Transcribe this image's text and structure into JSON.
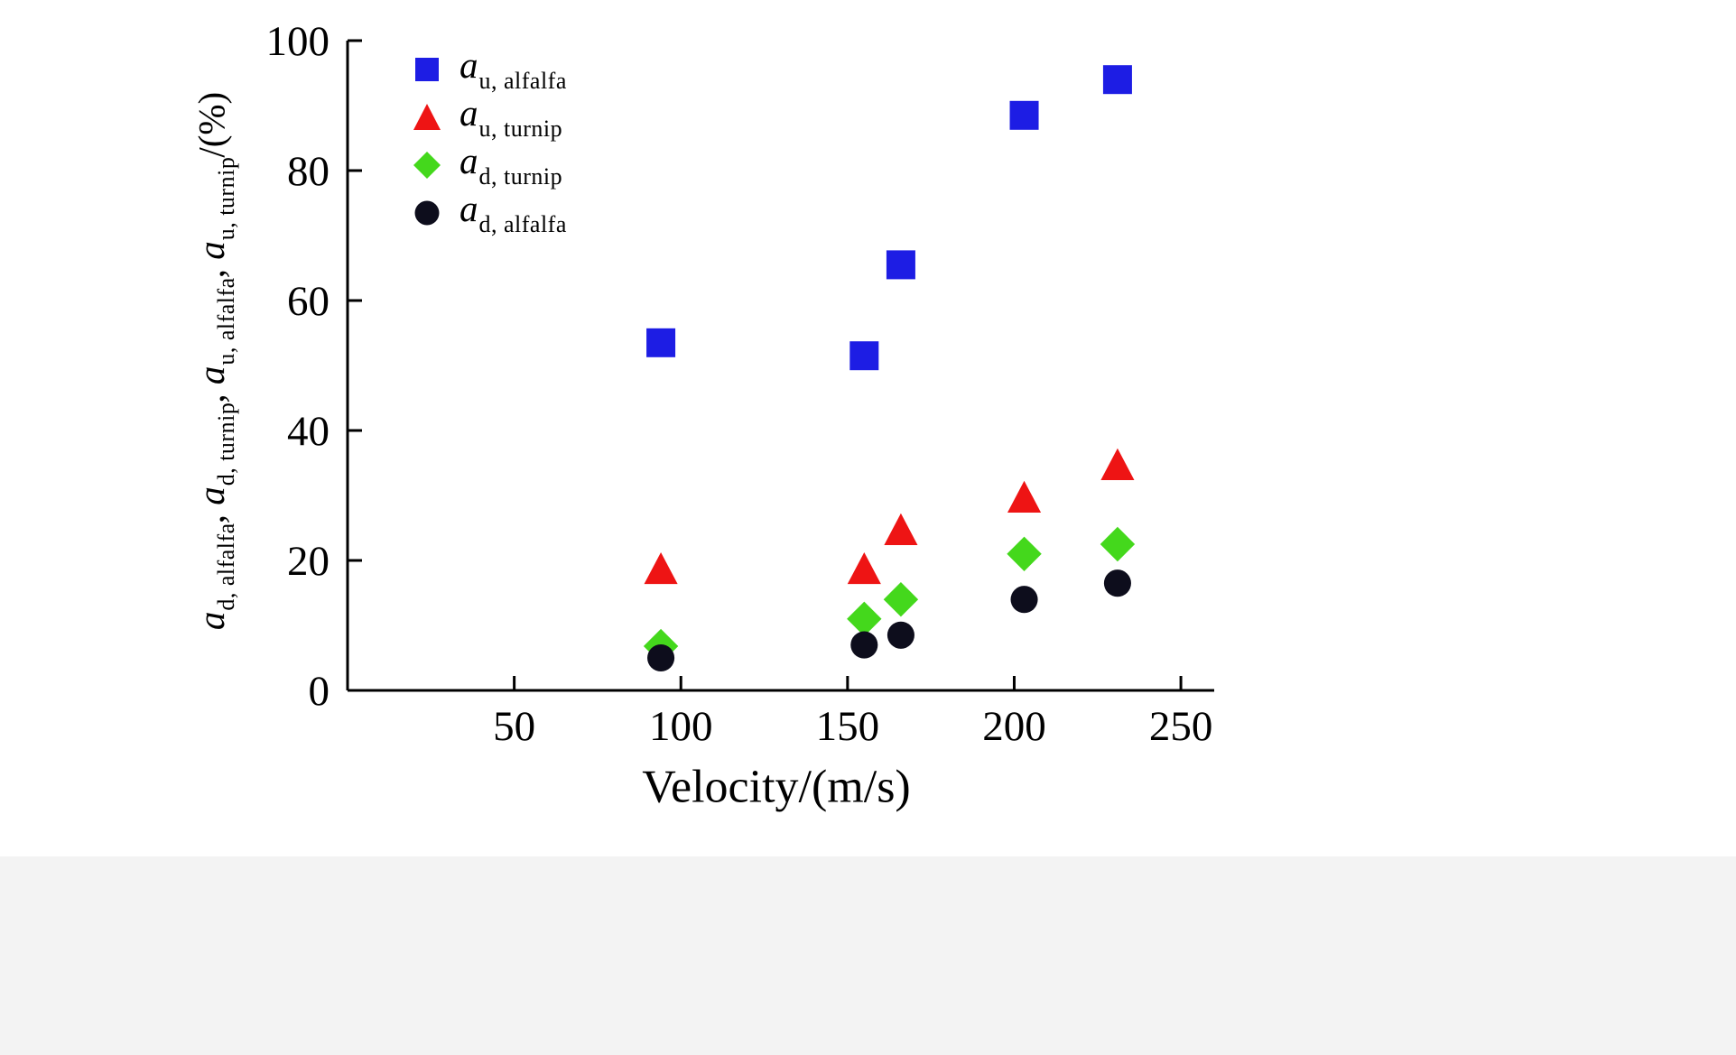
{
  "page": {
    "background": "#ffffff",
    "footer_strip_color": "#f3f3f3"
  },
  "chart_data": {
    "type": "scatter",
    "title": "",
    "xlabel": "Velocity/(m/s)",
    "ylabel": "a d,alfalfa, a d,turnip, a u,alfalfa, a u,turnip /(%)",
    "ylabel_parts": [
      {
        "main": "a",
        "sub": "d, alfalfa"
      },
      {
        "main": "a",
        "sub": "d, turnip"
      },
      {
        "main": "a",
        "sub": "u, alfalfa"
      },
      {
        "main": "a",
        "sub": "u, turnip"
      }
    ],
    "ylabel_suffix": "/(%)",
    "xlim": [
      0,
      260
    ],
    "ylim": [
      0,
      100
    ],
    "xticks": [
      50,
      100,
      150,
      200,
      250
    ],
    "yticks": [
      0,
      20,
      40,
      60,
      80,
      100
    ],
    "grid": false,
    "legend_position": "upper-left-inside",
    "x": [
      94,
      155,
      166,
      203,
      231
    ],
    "series": [
      {
        "name": "a_u,alfalfa",
        "label_main": "a",
        "label_sub": "u, alfalfa",
        "marker": "square",
        "color": "#1d1de4",
        "y": [
          53.5,
          51.5,
          65.5,
          88.5,
          94
        ]
      },
      {
        "name": "a_u,turnip",
        "label_main": "a",
        "label_sub": "u, turnip",
        "marker": "triangle",
        "color": "#ee1414",
        "y": [
          18.5,
          18.5,
          24.5,
          29.5,
          34.5
        ]
      },
      {
        "name": "a_d,turnip",
        "label_main": "a",
        "label_sub": "d, turnip",
        "marker": "diamond",
        "color": "#44d81c",
        "y": [
          6.8,
          11,
          14,
          21,
          22.5
        ]
      },
      {
        "name": "a_d,alfalfa",
        "label_main": "a",
        "label_sub": "d, alfalfa",
        "marker": "circle",
        "color": "#0d0d1c",
        "y": [
          5,
          7,
          8.5,
          14,
          16.5
        ]
      }
    ]
  }
}
